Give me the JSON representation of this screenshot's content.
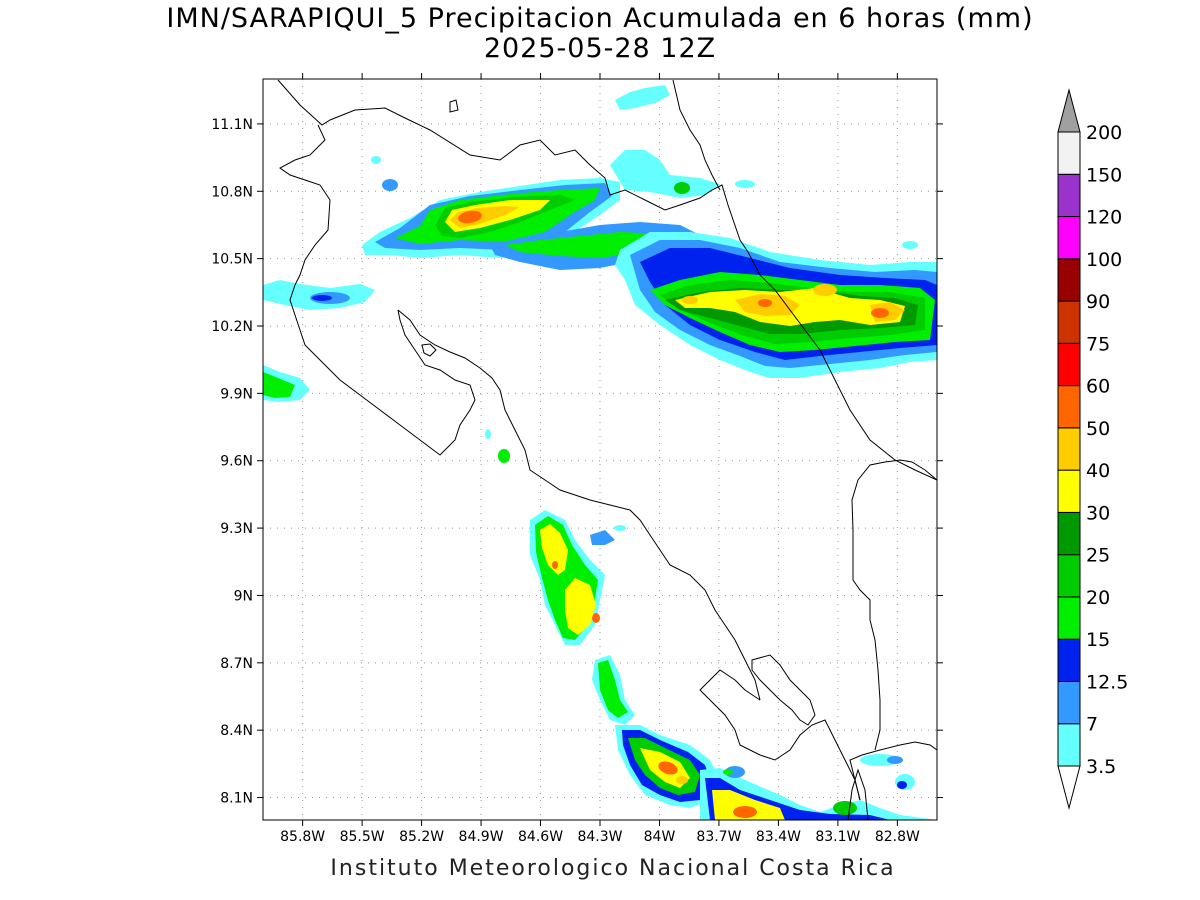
{
  "title": "IMN/SARAPIQUI_5 Precipitacion Acumulada en 6 horas (mm)",
  "subtitle": "2025-05-28 12Z",
  "footer": "Instituto Meteorologico Nacional Costa Rica",
  "map": {
    "lon_range": [
      -86.0,
      -82.6
    ],
    "lat_range": [
      8.0,
      11.3
    ],
    "lon_ticks": [
      {
        "value": -85.8,
        "label": "85.8W"
      },
      {
        "value": -85.5,
        "label": "85.5W"
      },
      {
        "value": -85.2,
        "label": "85.2W"
      },
      {
        "value": -84.9,
        "label": "84.9W"
      },
      {
        "value": -84.6,
        "label": "84.6W"
      },
      {
        "value": -84.3,
        "label": "84.3W"
      },
      {
        "value": -84.0,
        "label": "84W"
      },
      {
        "value": -83.7,
        "label": "83.7W"
      },
      {
        "value": -83.4,
        "label": "83.4W"
      },
      {
        "value": -83.1,
        "label": "83.1W"
      },
      {
        "value": -82.8,
        "label": "82.8W"
      }
    ],
    "lat_ticks": [
      {
        "value": 11.1,
        "label": "11.1N"
      },
      {
        "value": 10.8,
        "label": "10.8N"
      },
      {
        "value": 10.5,
        "label": "10.5N"
      },
      {
        "value": 10.2,
        "label": "10.2N"
      },
      {
        "value": 9.9,
        "label": "9.9N"
      },
      {
        "value": 9.6,
        "label": "9.6N"
      },
      {
        "value": 9.3,
        "label": "9.3N"
      },
      {
        "value": 9.0,
        "label": "9N"
      },
      {
        "value": 8.7,
        "label": "8.7N"
      },
      {
        "value": 8.4,
        "label": "8.4N"
      },
      {
        "value": 8.1,
        "label": "8.1N"
      }
    ],
    "grid": true
  },
  "colorbar": {
    "labels": [
      "3.5",
      "7",
      "12.5",
      "15",
      "20",
      "25",
      "30",
      "40",
      "50",
      "60",
      "75",
      "90",
      "100",
      "120",
      "150",
      "200"
    ],
    "colors": [
      "#66ffff",
      "#3399ff",
      "#0022ee",
      "#00ee00",
      "#00cc00",
      "#009900",
      "#ffff00",
      "#ffcc00",
      "#ff6600",
      "#ff0000",
      "#cc3300",
      "#990000",
      "#ff00ff",
      "#9933cc",
      "#f2f2f2"
    ],
    "over_color": "#a0a0a0",
    "under_color": "#ffffff"
  },
  "precip_levels": [
    {
      "level": "3.5",
      "color": "#66ffff"
    },
    {
      "level": "7",
      "color": "#3399ff"
    },
    {
      "level": "12.5",
      "color": "#0022ee"
    },
    {
      "level": "15",
      "color": "#00ee00"
    },
    {
      "level": "20",
      "color": "#00cc00"
    },
    {
      "level": "25",
      "color": "#009900"
    },
    {
      "level": "30",
      "color": "#ffff00"
    },
    {
      "level": "40",
      "color": "#ffcc00"
    },
    {
      "level": "50",
      "color": "#ff6600"
    }
  ]
}
